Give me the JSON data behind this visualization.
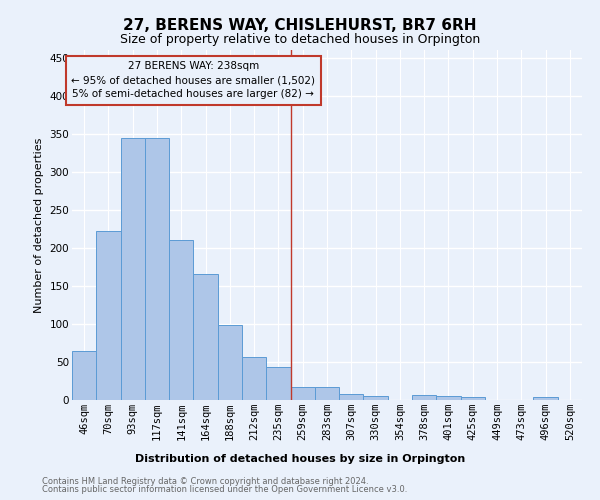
{
  "title": "27, BERENS WAY, CHISLEHURST, BR7 6RH",
  "subtitle": "Size of property relative to detached houses in Orpington",
  "xlabel": "Distribution of detached houses by size in Orpington",
  "ylabel": "Number of detached properties",
  "footer_line1": "Contains HM Land Registry data © Crown copyright and database right 2024.",
  "footer_line2": "Contains public sector information licensed under the Open Government Licence v3.0.",
  "bar_labels": [
    "46sqm",
    "70sqm",
    "93sqm",
    "117sqm",
    "141sqm",
    "164sqm",
    "188sqm",
    "212sqm",
    "235sqm",
    "259sqm",
    "283sqm",
    "307sqm",
    "330sqm",
    "354sqm",
    "378sqm",
    "401sqm",
    "425sqm",
    "449sqm",
    "473sqm",
    "496sqm",
    "520sqm"
  ],
  "bar_values": [
    65,
    222,
    344,
    344,
    210,
    165,
    99,
    57,
    43,
    17,
    17,
    8,
    5,
    0,
    7,
    5,
    4,
    0,
    0,
    4,
    0
  ],
  "bar_color": "#aec6e8",
  "bar_edge_color": "#5b9bd5",
  "bg_color": "#eaf1fb",
  "grid_color": "#ffffff",
  "vline_x": 8.5,
  "vline_color": "#c0392b",
  "annotation_title": "27 BERENS WAY: 238sqm",
  "annotation_line1": "← 95% of detached houses are smaller (1,502)",
  "annotation_line2": "5% of semi-detached houses are larger (82) →",
  "annotation_box_color": "#c0392b",
  "ylim": [
    0,
    460
  ],
  "yticks": [
    0,
    50,
    100,
    150,
    200,
    250,
    300,
    350,
    400,
    450
  ],
  "title_fontsize": 11,
  "subtitle_fontsize": 9,
  "ylabel_fontsize": 8,
  "tick_fontsize": 7.5,
  "annot_fontsize": 7.5,
  "footer_fontsize": 6.0,
  "xlabel_fontsize": 8
}
